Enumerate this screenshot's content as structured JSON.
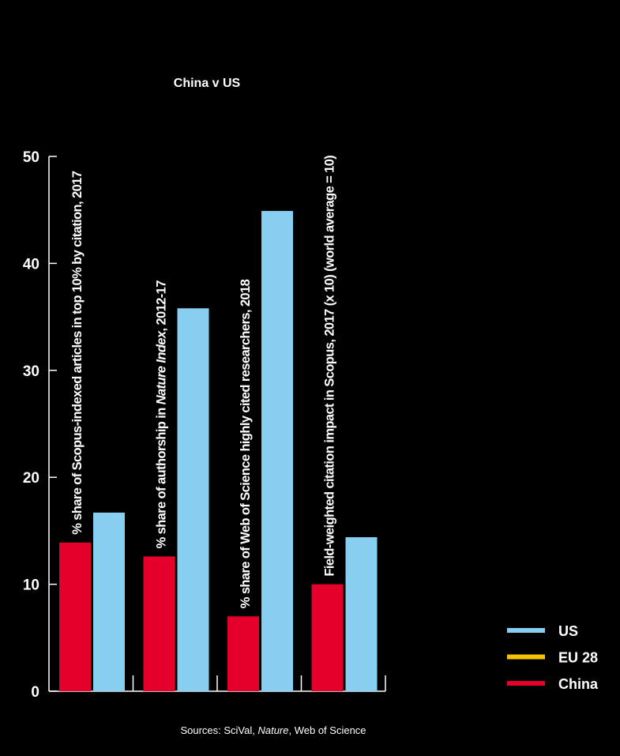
{
  "chart_data": {
    "type": "bar",
    "title": "China v US",
    "categories": [
      {
        "parts": [
          {
            "text": "% share of Scopus-indexed articles in top 10% by citation, 2017",
            "italic": false
          }
        ]
      },
      {
        "parts": [
          {
            "text": "% share of authorship in ",
            "italic": false
          },
          {
            "text": "Nature Index",
            "italic": true
          },
          {
            "text": ", 2012-17",
            "italic": false
          }
        ]
      },
      {
        "parts": [
          {
            "text": "% share of Web of Science highly cited researchers, 2018",
            "italic": false
          }
        ]
      },
      {
        "parts": [
          {
            "text": "Field-weighted citation impact in Scopus, 2017 (x 10) (world average = 10)",
            "italic": false
          }
        ]
      }
    ],
    "series": [
      {
        "name": "China",
        "color": "#e4002b",
        "values": [
          13.9,
          12.6,
          7.0,
          10.0
        ]
      },
      {
        "name": "US",
        "color": "#87cef0",
        "values": [
          16.7,
          35.8,
          44.9,
          14.4
        ]
      }
    ],
    "legend": {
      "position": "bottom-right",
      "items": [
        {
          "name": "US",
          "color": "#87cef0"
        },
        {
          "name": "EU 28",
          "color": "#f5c400"
        },
        {
          "name": "China",
          "color": "#e4002b"
        }
      ]
    },
    "ylim": [
      0,
      50
    ],
    "yticks": [
      "0",
      "10",
      "20",
      "30",
      "40",
      "50"
    ],
    "xlabel": "",
    "ylabel": "",
    "grid": false,
    "source": {
      "prefix": "Sources: SciVal, ",
      "italic": "Nature",
      "suffix": ", Web of Science"
    }
  }
}
